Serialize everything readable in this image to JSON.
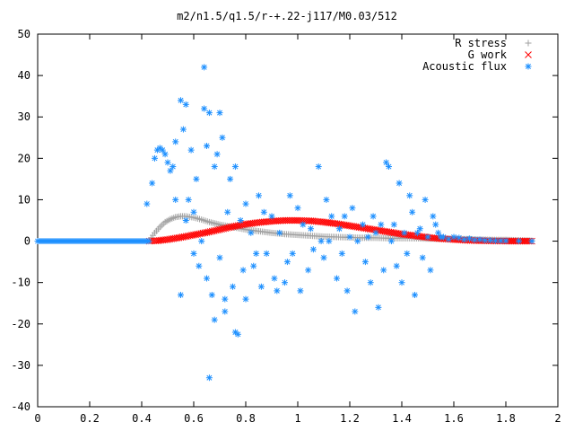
{
  "chart_data": {
    "type": "scatter",
    "title": "m2/n1.5/q1.5/r-+.22-j117/M0.03/512",
    "xlabel": "",
    "ylabel": "",
    "xlim": [
      0,
      2
    ],
    "ylim": [
      -40,
      50
    ],
    "xticks": [
      "0",
      "0.2",
      "0.4",
      "0.6",
      "0.8",
      "1",
      "1.2",
      "1.4",
      "1.6",
      "1.8",
      "2"
    ],
    "yticks": [
      "-40",
      "-30",
      "-20",
      "-10",
      "0",
      "10",
      "20",
      "30",
      "40",
      "50"
    ],
    "grid": false,
    "legend_position": "top-right",
    "series": [
      {
        "name": "R stress",
        "marker": "+",
        "color": "#a0a0a0",
        "points": [
          [
            0.43,
            0.2
          ],
          [
            0.45,
            2.0
          ],
          [
            0.47,
            3.4
          ],
          [
            0.49,
            4.6
          ],
          [
            0.51,
            5.3
          ],
          [
            0.53,
            5.8
          ],
          [
            0.55,
            6.0
          ],
          [
            0.57,
            6.0
          ],
          [
            0.6,
            5.7
          ],
          [
            0.63,
            5.2
          ],
          [
            0.66,
            4.6
          ],
          [
            0.7,
            4.0
          ],
          [
            0.75,
            3.4
          ],
          [
            0.8,
            2.8
          ],
          [
            0.85,
            2.4
          ],
          [
            0.9,
            2.0
          ],
          [
            0.95,
            1.7
          ],
          [
            1.0,
            1.5
          ],
          [
            1.05,
            1.3
          ],
          [
            1.1,
            1.1
          ],
          [
            1.15,
            1.0
          ],
          [
            1.2,
            0.9
          ],
          [
            1.25,
            0.8
          ],
          [
            1.3,
            0.8
          ],
          [
            1.35,
            0.7
          ],
          [
            1.4,
            0.7
          ],
          [
            1.45,
            0.7
          ],
          [
            1.5,
            0.6
          ],
          [
            1.55,
            0.6
          ],
          [
            1.6,
            0.5
          ],
          [
            1.65,
            0.5
          ],
          [
            1.7,
            0.4
          ],
          [
            1.75,
            0.3
          ],
          [
            1.8,
            0.3
          ],
          [
            1.85,
            0.2
          ],
          [
            1.9,
            0.1
          ]
        ]
      },
      {
        "name": "G work",
        "marker": "x",
        "color": "#ff0000",
        "points": [
          [
            0.43,
            0.0
          ],
          [
            0.46,
            0.1
          ],
          [
            0.5,
            0.4
          ],
          [
            0.55,
            0.9
          ],
          [
            0.6,
            1.5
          ],
          [
            0.65,
            2.1
          ],
          [
            0.7,
            2.8
          ],
          [
            0.75,
            3.5
          ],
          [
            0.8,
            4.1
          ],
          [
            0.85,
            4.5
          ],
          [
            0.9,
            4.8
          ],
          [
            0.95,
            5.0
          ],
          [
            1.0,
            5.0
          ],
          [
            1.05,
            4.9
          ],
          [
            1.1,
            4.6
          ],
          [
            1.15,
            4.2
          ],
          [
            1.2,
            3.7
          ],
          [
            1.25,
            3.2
          ],
          [
            1.3,
            2.7
          ],
          [
            1.35,
            2.2
          ],
          [
            1.4,
            1.7
          ],
          [
            1.45,
            1.3
          ],
          [
            1.5,
            0.9
          ],
          [
            1.55,
            0.6
          ],
          [
            1.6,
            0.4
          ],
          [
            1.65,
            0.2
          ],
          [
            1.7,
            0.1
          ],
          [
            1.75,
            0.05
          ],
          [
            1.8,
            0.02
          ],
          [
            1.9,
            0.0
          ]
        ]
      },
      {
        "name": "Acoustic flux",
        "marker": "*",
        "color": "#1e90ff",
        "baseline_points": [
          [
            0.0,
            0.0
          ],
          [
            0.43,
            0.0
          ]
        ],
        "points": [
          [
            0.42,
            9
          ],
          [
            0.44,
            14
          ],
          [
            0.45,
            20
          ],
          [
            0.46,
            22
          ],
          [
            0.47,
            22.5
          ],
          [
            0.48,
            22
          ],
          [
            0.49,
            21
          ],
          [
            0.5,
            19
          ],
          [
            0.51,
            17
          ],
          [
            0.52,
            18
          ],
          [
            0.53,
            24
          ],
          [
            0.53,
            10
          ],
          [
            0.55,
            34
          ],
          [
            0.55,
            -13
          ],
          [
            0.56,
            27
          ],
          [
            0.57,
            33
          ],
          [
            0.57,
            5
          ],
          [
            0.58,
            10
          ],
          [
            0.59,
            22
          ],
          [
            0.6,
            7
          ],
          [
            0.6,
            -3
          ],
          [
            0.61,
            15
          ],
          [
            0.62,
            -6
          ],
          [
            0.63,
            0
          ],
          [
            0.64,
            42
          ],
          [
            0.64,
            32
          ],
          [
            0.65,
            23
          ],
          [
            0.65,
            -9
          ],
          [
            0.66,
            31
          ],
          [
            0.66,
            -33
          ],
          [
            0.67,
            -13
          ],
          [
            0.68,
            18
          ],
          [
            0.68,
            -19
          ],
          [
            0.69,
            21
          ],
          [
            0.7,
            31
          ],
          [
            0.7,
            -4
          ],
          [
            0.71,
            25
          ],
          [
            0.72,
            -14
          ],
          [
            0.72,
            -17
          ],
          [
            0.73,
            7
          ],
          [
            0.74,
            15
          ],
          [
            0.75,
            -11
          ],
          [
            0.76,
            18
          ],
          [
            0.76,
            -22
          ],
          [
            0.77,
            -22.5
          ],
          [
            0.78,
            5
          ],
          [
            0.79,
            -7
          ],
          [
            0.8,
            9
          ],
          [
            0.8,
            -14
          ],
          [
            0.82,
            2
          ],
          [
            0.83,
            -6
          ],
          [
            0.84,
            -3
          ],
          [
            0.85,
            11
          ],
          [
            0.86,
            -11
          ],
          [
            0.87,
            7
          ],
          [
            0.88,
            -3
          ],
          [
            0.9,
            6
          ],
          [
            0.91,
            -9
          ],
          [
            0.92,
            -12
          ],
          [
            0.93,
            2
          ],
          [
            0.95,
            -10
          ],
          [
            0.96,
            -5
          ],
          [
            0.97,
            11
          ],
          [
            0.98,
            -3
          ],
          [
            1.0,
            8
          ],
          [
            1.01,
            -12
          ],
          [
            1.02,
            4
          ],
          [
            1.04,
            -7
          ],
          [
            1.05,
            3
          ],
          [
            1.06,
            -2
          ],
          [
            1.08,
            18
          ],
          [
            1.09,
            0
          ],
          [
            1.1,
            -4
          ],
          [
            1.11,
            10
          ],
          [
            1.12,
            0
          ],
          [
            1.13,
            6
          ],
          [
            1.15,
            -9
          ],
          [
            1.16,
            3
          ],
          [
            1.17,
            -3
          ],
          [
            1.18,
            6
          ],
          [
            1.19,
            -12
          ],
          [
            1.2,
            1
          ],
          [
            1.21,
            8
          ],
          [
            1.22,
            -17
          ],
          [
            1.23,
            0
          ],
          [
            1.25,
            4
          ],
          [
            1.26,
            -5
          ],
          [
            1.27,
            1
          ],
          [
            1.28,
            -10
          ],
          [
            1.29,
            6
          ],
          [
            1.3,
            2
          ],
          [
            1.31,
            -16
          ],
          [
            1.32,
            4
          ],
          [
            1.33,
            -7
          ],
          [
            1.34,
            19
          ],
          [
            1.35,
            18
          ],
          [
            1.36,
            0
          ],
          [
            1.37,
            4
          ],
          [
            1.38,
            -6
          ],
          [
            1.39,
            14
          ],
          [
            1.4,
            -10
          ],
          [
            1.41,
            2
          ],
          [
            1.42,
            -3
          ],
          [
            1.43,
            11
          ],
          [
            1.44,
            7
          ],
          [
            1.45,
            -13
          ],
          [
            1.46,
            2
          ],
          [
            1.47,
            3
          ],
          [
            1.48,
            -4
          ],
          [
            1.49,
            10
          ],
          [
            1.5,
            1
          ],
          [
            1.51,
            -7
          ],
          [
            1.52,
            6
          ],
          [
            1.53,
            4
          ],
          [
            1.54,
            2
          ],
          [
            1.55,
            1
          ],
          [
            1.56,
            1
          ],
          [
            1.58,
            0.5
          ],
          [
            1.6,
            1
          ],
          [
            1.62,
            0.8
          ],
          [
            1.64,
            0.4
          ],
          [
            1.66,
            0.6
          ],
          [
            1.68,
            0.3
          ],
          [
            1.7,
            0.4
          ],
          [
            1.72,
            0.2
          ],
          [
            1.74,
            0.2
          ],
          [
            1.76,
            0.1
          ],
          [
            1.78,
            0.1
          ],
          [
            1.8,
            0.1
          ],
          [
            1.85,
            0.05
          ],
          [
            1.9,
            0.0
          ]
        ]
      }
    ]
  }
}
